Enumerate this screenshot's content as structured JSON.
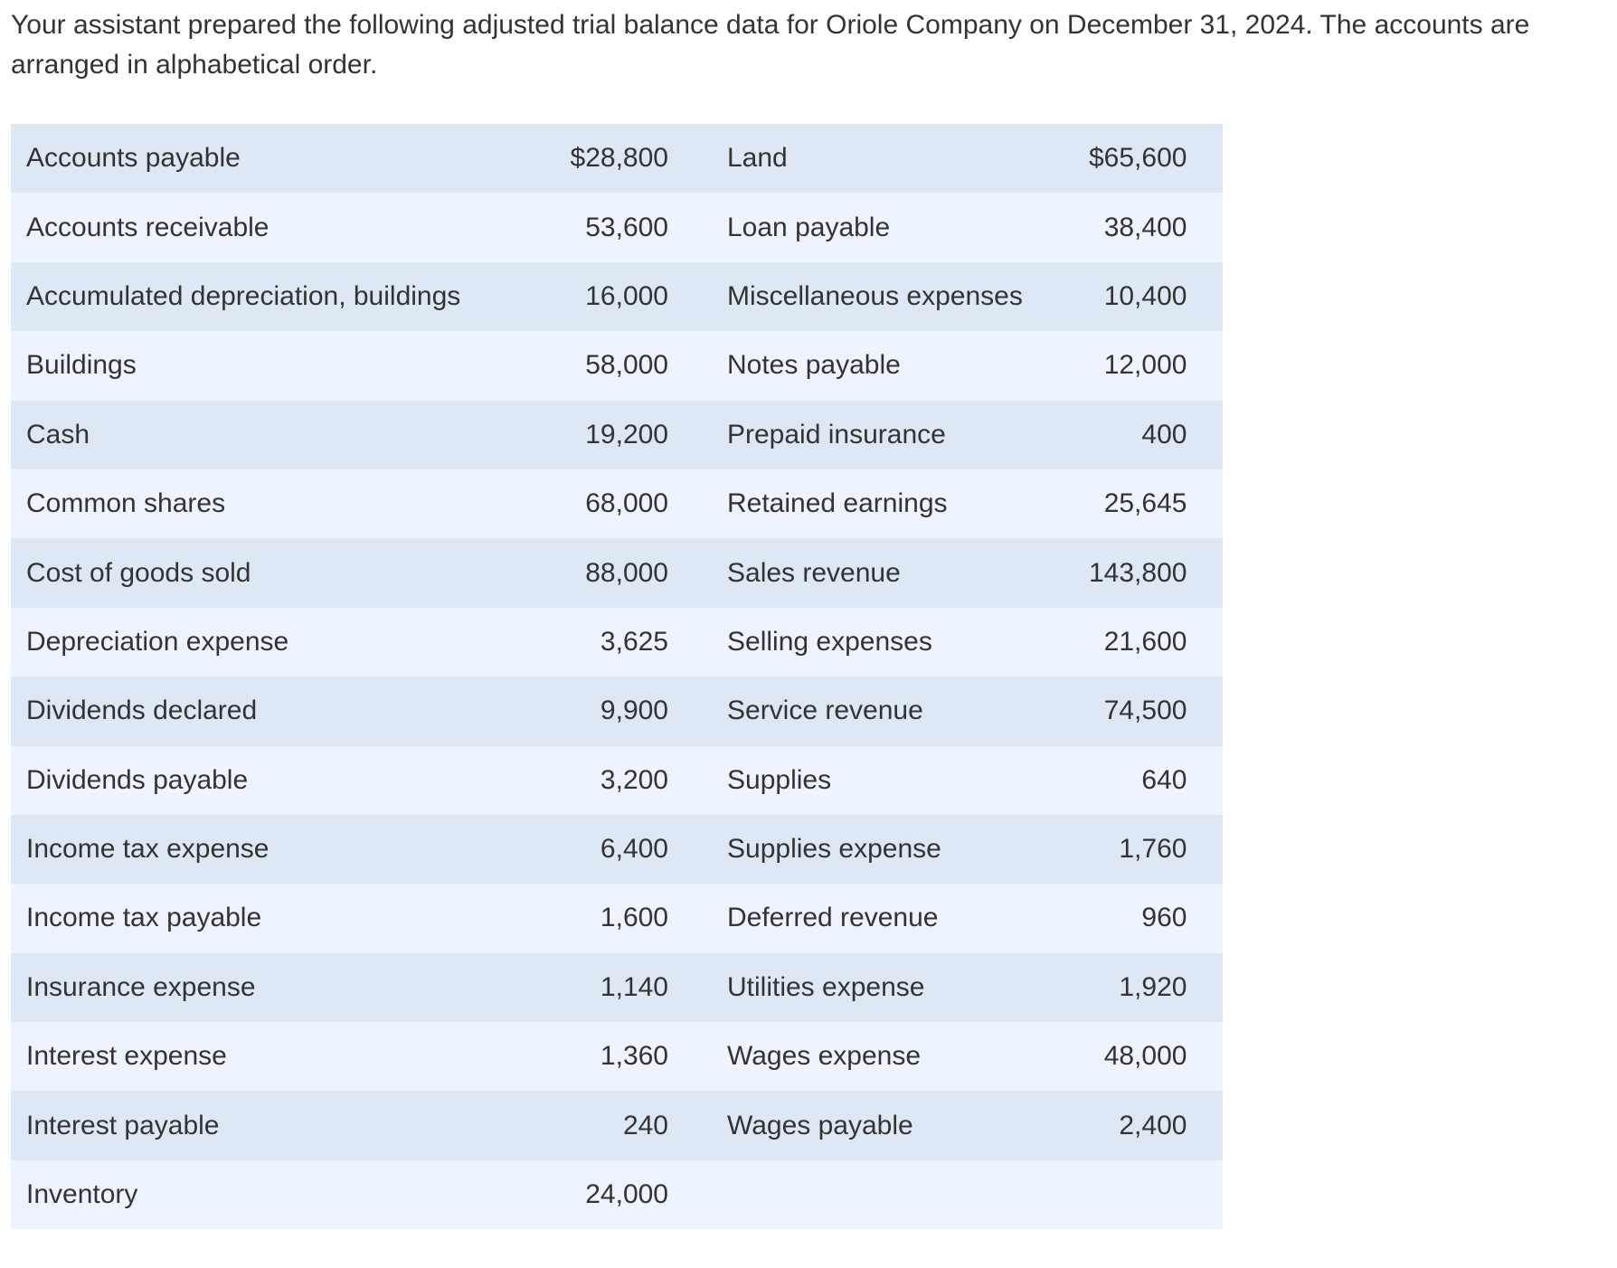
{
  "intro": "Your assistant prepared the following adjusted trial balance data for Oriole Company on December 31, 2024. The accounts are arranged in alphabetical order.",
  "table": {
    "rows": [
      [
        "Accounts payable",
        "$28,800",
        "Land",
        "$65,600"
      ],
      [
        "Accounts receivable",
        "53,600",
        "Loan payable",
        "38,400"
      ],
      [
        "Accumulated depreciation, buildings",
        "16,000",
        "Miscellaneous expenses",
        "10,400"
      ],
      [
        "Buildings",
        "58,000",
        "Notes payable",
        "12,000"
      ],
      [
        "Cash",
        "19,200",
        "Prepaid insurance",
        "400"
      ],
      [
        "Common shares",
        "68,000",
        "Retained earnings",
        "25,645"
      ],
      [
        "Cost of goods sold",
        "88,000",
        "Sales revenue",
        "143,800"
      ],
      [
        "Depreciation expense",
        "3,625",
        "Selling expenses",
        "21,600"
      ],
      [
        "Dividends declared",
        "9,900",
        "Service revenue",
        "74,500"
      ],
      [
        "Dividends payable",
        "3,200",
        "Supplies",
        "640"
      ],
      [
        "Income tax expense",
        "6,400",
        "Supplies expense",
        "1,760"
      ],
      [
        "Income tax payable",
        "1,600",
        "Deferred revenue",
        "960"
      ],
      [
        "Insurance expense",
        "1,140",
        "Utilities expense",
        "1,920"
      ],
      [
        "Interest expense",
        "1,360",
        "Wages expense",
        "48,000"
      ],
      [
        "Interest payable",
        "240",
        "Wages payable",
        "2,400"
      ],
      [
        "Inventory",
        "24,000"
      ]
    ]
  }
}
